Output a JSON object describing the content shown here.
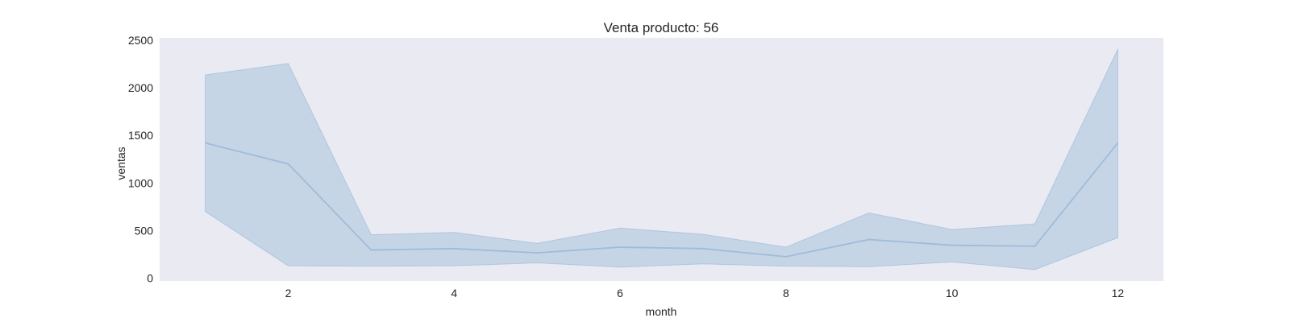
{
  "chart_data": {
    "type": "area",
    "title": "Venta producto: 56",
    "xlabel": "month",
    "ylabel": "ventas",
    "xlim": [
      0.45,
      12.55
    ],
    "ylim": [
      -30,
      2525
    ],
    "xticks": [
      2,
      4,
      6,
      8,
      10,
      12
    ],
    "yticks": [
      0,
      500,
      1000,
      1500,
      2000,
      2500
    ],
    "grid": false,
    "background": "#eaeaf2",
    "series": [
      {
        "x": [
          1,
          2,
          3,
          4,
          5,
          6,
          7,
          8,
          9,
          10,
          11,
          12
        ],
        "mean": [
          1420,
          1200,
          295,
          310,
          265,
          325,
          310,
          225,
          405,
          345,
          335,
          1420
        ],
        "upper": [
          2135,
          2255,
          455,
          480,
          365,
          525,
          460,
          325,
          685,
          510,
          570,
          2405
        ],
        "lower": [
          700,
          130,
          125,
          130,
          160,
          115,
          150,
          125,
          120,
          170,
          90,
          425
        ],
        "line_color": "#9ebcda",
        "band_color": "#a8c2dc"
      }
    ]
  }
}
